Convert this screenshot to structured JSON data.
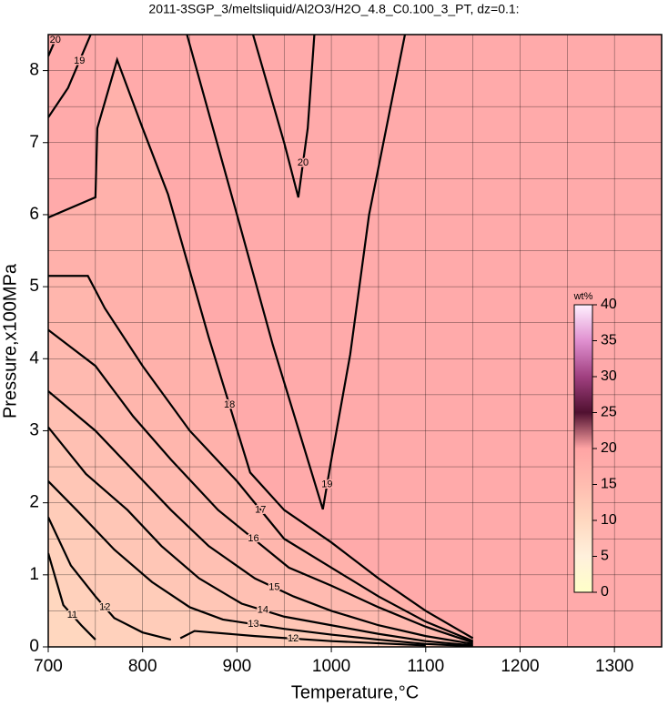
{
  "chart_data": {
    "type": "contour",
    "title": "2011-3SGP_3/meltsliquid/Al2O3/H2O_4.8_C0.100_3_PT, dz=0.1:",
    "x_label": "Temperature,°C",
    "y_label": "Pressure,x100MPa",
    "xlim": [
      700,
      1350
    ],
    "xticks": [
      700,
      800,
      900,
      1000,
      1100,
      1200,
      1300
    ],
    "ylim": [
      0,
      8.5
    ],
    "yticks": [
      0,
      1,
      2,
      3,
      4,
      5,
      6,
      7,
      8
    ],
    "grid": true,
    "background_color": "#ffaaaa",
    "colorbar": {
      "label": "wt%",
      "ticks": [
        0,
        5,
        10,
        15,
        20,
        25,
        30,
        35,
        40
      ],
      "colors": [
        "#ffffc8",
        "#fff0dc",
        "#ffd8c0",
        "#ffbcb0",
        "#ffa4a4",
        "#501030",
        "#a04080",
        "#e090d0",
        "#fff0ff"
      ]
    },
    "contours": [
      {
        "level": 18,
        "x": [
          700,
          750,
          752,
          773,
          800,
          827,
          870,
          914,
          950,
          1000,
          1050,
          1100,
          1150
        ],
        "y": [
          5.96,
          6.24,
          7.2,
          8.15,
          7.2,
          6.28,
          4.3,
          2.42,
          1.9,
          1.45,
          0.95,
          0.5,
          0.12
        ]
      },
      {
        "level": 17,
        "x": [
          700,
          742,
          760,
          800,
          850,
          900,
          950,
          1000,
          1050,
          1100,
          1150
        ],
        "y": [
          5.15,
          5.15,
          4.7,
          3.9,
          3.0,
          2.3,
          1.5,
          1.1,
          0.7,
          0.35,
          0.08
        ]
      },
      {
        "level": 16,
        "x": [
          700,
          750,
          790,
          830,
          880,
          955,
          1000,
          1050,
          1100,
          1150
        ],
        "y": [
          4.4,
          3.9,
          3.2,
          2.6,
          1.9,
          1.1,
          0.85,
          0.55,
          0.28,
          0.06
        ]
      },
      {
        "level": 15,
        "x": [
          700,
          750,
          790,
          830,
          870,
          919,
          960,
          1000,
          1050,
          1100,
          1150
        ],
        "y": [
          3.55,
          3.0,
          2.45,
          1.9,
          1.4,
          0.95,
          0.7,
          0.5,
          0.3,
          0.15,
          0.04
        ]
      },
      {
        "level": 14,
        "x": [
          700,
          740,
          784,
          820,
          860,
          905,
          950,
          1000,
          1050,
          1100,
          1150
        ],
        "y": [
          3.05,
          2.4,
          1.9,
          1.4,
          0.95,
          0.6,
          0.42,
          0.3,
          0.18,
          0.08,
          0.02
        ]
      },
      {
        "level": 13,
        "x": [
          700,
          730,
          770,
          810,
          850,
          885,
          950,
          1000,
          1050,
          1100,
          1150
        ],
        "y": [
          2.3,
          1.9,
          1.35,
          0.9,
          0.55,
          0.38,
          0.25,
          0.17,
          0.1,
          0.04,
          0.01
        ]
      },
      {
        "level": 12,
        "x": [
          700,
          724,
          750,
          770,
          800,
          830
        ],
        "y": [
          1.8,
          1.13,
          0.7,
          0.4,
          0.2,
          0.1
        ]
      },
      {
        "level": 11,
        "x": [
          700,
          716,
          735,
          750
        ],
        "y": [
          1.3,
          0.58,
          0.3,
          0.1
        ]
      },
      {
        "level": 12,
        "x": [
          840,
          855,
          919,
          1000,
          1100
        ],
        "y": [
          0.12,
          0.22,
          0.15,
          0.08,
          0.02
        ]
      },
      {
        "level": 19,
        "x": [
          847,
          900,
          938,
          991,
          1000,
          1020,
          1040,
          1078
        ],
        "y": [
          8.5,
          6.0,
          4.19,
          1.91,
          2.6,
          4.06,
          6.0,
          8.5
        ]
      },
      {
        "level": 19,
        "x": [
          700,
          721,
          745
        ],
        "y": [
          7.35,
          7.76,
          8.5
        ]
      },
      {
        "level": 20,
        "x": [
          917,
          950,
          965,
          975,
          982
        ],
        "y": [
          8.5,
          7.0,
          6.24,
          7.2,
          8.5
        ]
      },
      {
        "level": 20,
        "x": [
          700,
          705,
          710
        ],
        "y": [
          8.2,
          8.35,
          8.5
        ]
      }
    ]
  }
}
